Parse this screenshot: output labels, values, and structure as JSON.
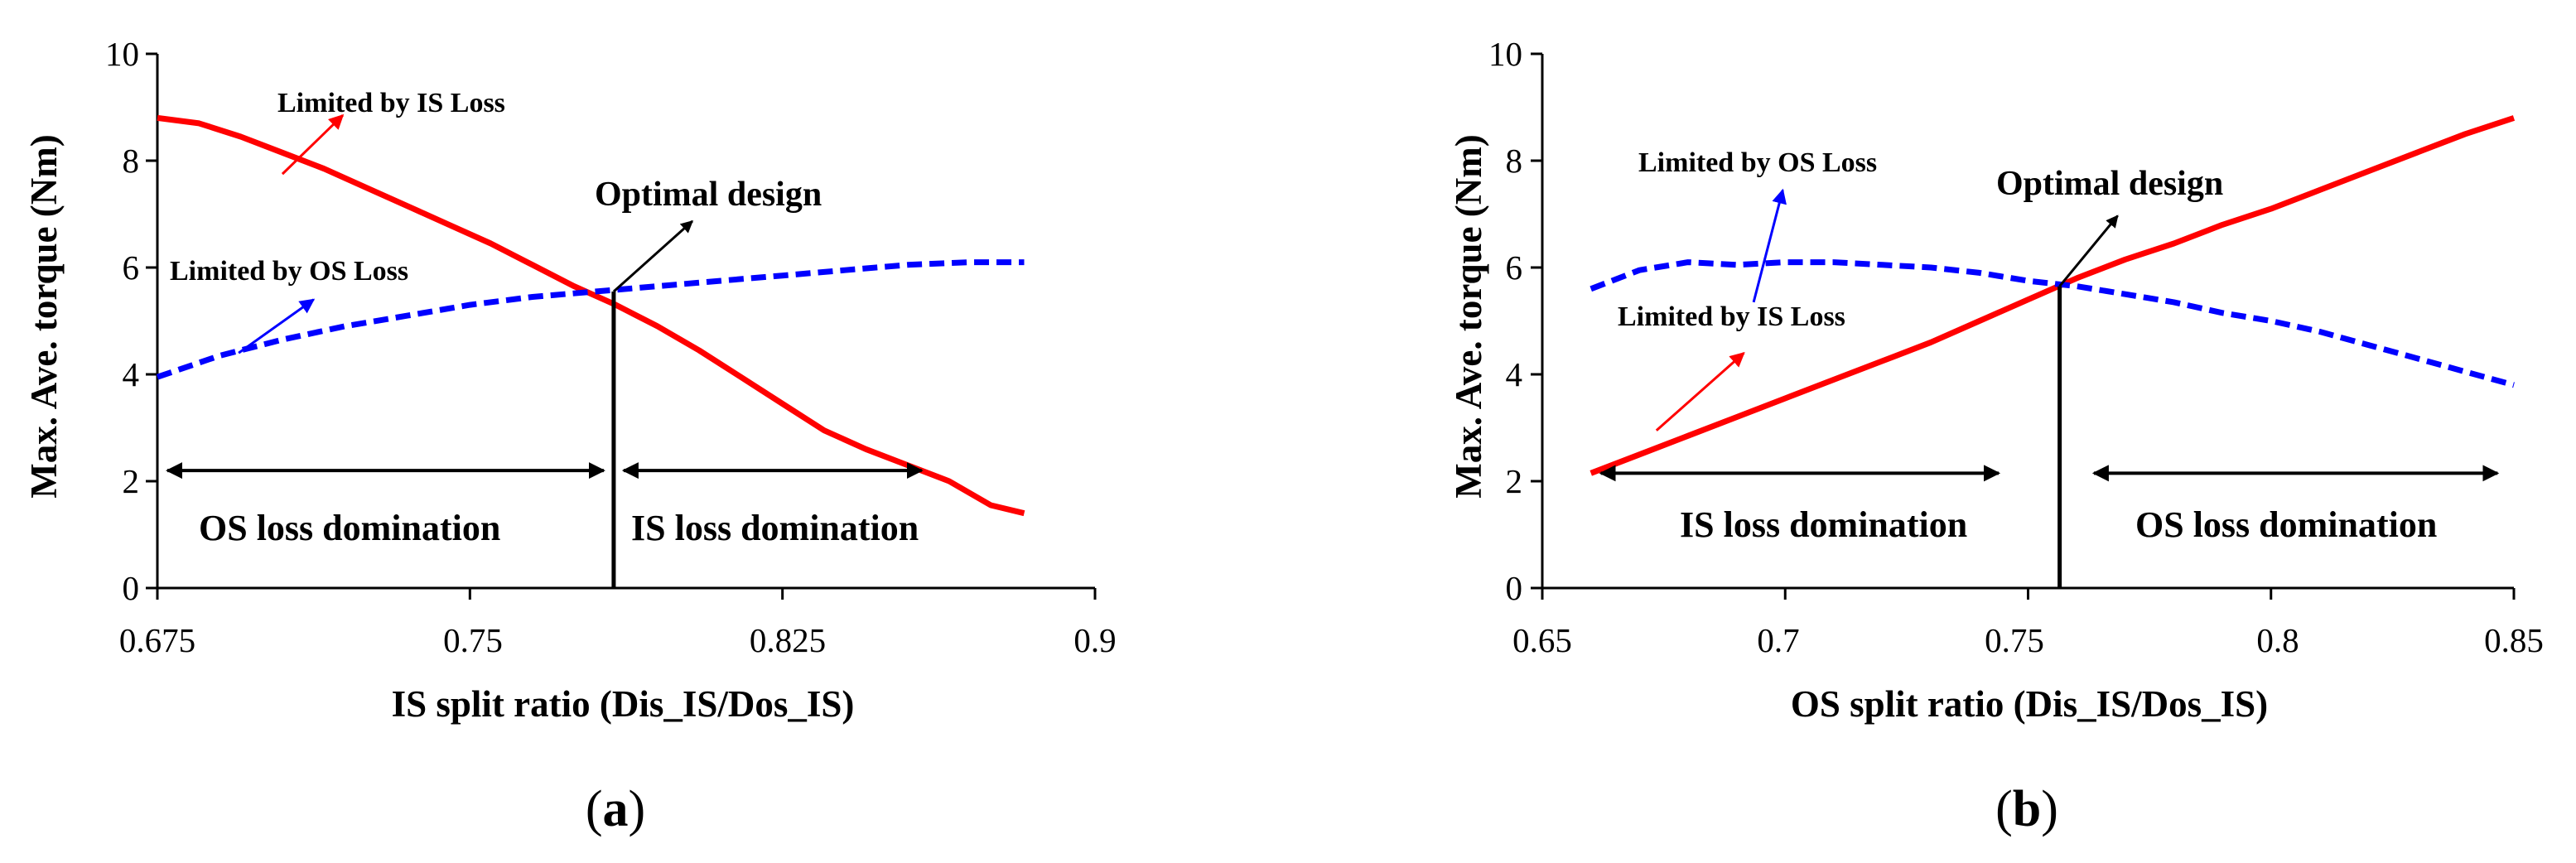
{
  "chart_data": [
    {
      "type": "line",
      "panel_label": "(a)",
      "panel_letter": "a",
      "xlabel": "IS split ratio (Dis_IS/Dos_IS)",
      "ylabel": "Max. Ave. torque (Nm)",
      "xlim": [
        0.675,
        0.9
      ],
      "ylim": [
        0,
        10
      ],
      "x_ticks": [
        0.675,
        0.75,
        0.825,
        0.9
      ],
      "x_tick_labels": [
        "0.675",
        "0.75",
        "0.825",
        "0.9"
      ],
      "y_ticks": [
        0,
        2,
        4,
        6,
        8,
        10
      ],
      "y_tick_labels": [
        "0",
        "2",
        "4",
        "6",
        "8",
        "10"
      ],
      "grid": false,
      "series": [
        {
          "name": "Limited by IS Loss",
          "color": "#ff0000",
          "style": "solid",
          "x": [
            0.675,
            0.685,
            0.695,
            0.705,
            0.715,
            0.725,
            0.735,
            0.745,
            0.755,
            0.765,
            0.775,
            0.785,
            0.795,
            0.805,
            0.815,
            0.825,
            0.835,
            0.845,
            0.855,
            0.865,
            0.875,
            0.883
          ],
          "y": [
            8.8,
            8.7,
            8.45,
            8.15,
            7.85,
            7.5,
            7.15,
            6.8,
            6.45,
            6.05,
            5.65,
            5.3,
            4.9,
            4.45,
            3.95,
            3.45,
            2.95,
            2.6,
            2.3,
            2.0,
            1.55,
            1.4
          ]
        },
        {
          "name": "Limited by OS Loss",
          "color": "#0000ff",
          "style": "dashed",
          "x": [
            0.675,
            0.69,
            0.705,
            0.72,
            0.735,
            0.75,
            0.765,
            0.78,
            0.795,
            0.81,
            0.825,
            0.84,
            0.855,
            0.87,
            0.883
          ],
          "y": [
            3.95,
            4.35,
            4.65,
            4.9,
            5.1,
            5.3,
            5.45,
            5.55,
            5.65,
            5.75,
            5.85,
            5.95,
            6.05,
            6.1,
            6.1
          ]
        }
      ],
      "optimal_x": 0.7845,
      "optimal_y": 5.55,
      "annotations": {
        "is_loss_label": "Limited by IS Loss",
        "os_loss_label": "Limited by OS Loss",
        "optimal_label": "Optimal design",
        "left_region": "OS loss domination",
        "right_region": "IS loss domination"
      },
      "region_arrow_y": 2.2,
      "region_left_range": [
        0.675,
        0.7845
      ],
      "region_right_range": [
        0.7845,
        0.86
      ]
    },
    {
      "type": "line",
      "panel_label": "(b)",
      "panel_letter": "b",
      "xlabel": "OS split ratio (Dis_IS/Dos_IS)",
      "ylabel": "Max. Ave. torque (Nm)",
      "xlim": [
        0.65,
        0.85
      ],
      "ylim": [
        0,
        10
      ],
      "x_ticks": [
        0.65,
        0.7,
        0.75,
        0.8,
        0.85
      ],
      "x_tick_labels": [
        "0.65",
        "0.7",
        "0.75",
        "0.8",
        "0.85"
      ],
      "y_ticks": [
        0,
        2,
        4,
        6,
        8,
        10
      ],
      "y_tick_labels": [
        "0",
        "2",
        "4",
        "6",
        "8",
        "10"
      ],
      "grid": false,
      "series": [
        {
          "name": "Limited by IS Loss",
          "color": "#ff0000",
          "style": "solid",
          "x": [
            0.66,
            0.67,
            0.68,
            0.69,
            0.7,
            0.71,
            0.72,
            0.73,
            0.74,
            0.75,
            0.76,
            0.77,
            0.78,
            0.79,
            0.8,
            0.81,
            0.82,
            0.83,
            0.84,
            0.85
          ],
          "y": [
            2.15,
            2.5,
            2.85,
            3.2,
            3.55,
            3.9,
            4.25,
            4.6,
            5.0,
            5.4,
            5.8,
            6.15,
            6.45,
            6.8,
            7.1,
            7.45,
            7.8,
            8.15,
            8.5,
            8.8
          ]
        },
        {
          "name": "Limited by OS Loss",
          "color": "#0000ff",
          "style": "dashed",
          "x": [
            0.66,
            0.67,
            0.68,
            0.69,
            0.7,
            0.71,
            0.72,
            0.73,
            0.74,
            0.75,
            0.76,
            0.77,
            0.78,
            0.79,
            0.8,
            0.81,
            0.82,
            0.83,
            0.84,
            0.85
          ],
          "y": [
            5.6,
            5.95,
            6.1,
            6.05,
            6.1,
            6.1,
            6.05,
            6.0,
            5.9,
            5.75,
            5.65,
            5.5,
            5.35,
            5.15,
            5.0,
            4.8,
            4.55,
            4.3,
            4.05,
            3.8
          ]
        }
      ],
      "optimal_x": 0.7565,
      "optimal_y": 5.65,
      "annotations": {
        "is_loss_label": "Limited by IS Loss",
        "os_loss_label": "Limited by OS Loss",
        "optimal_label": "Optimal design",
        "left_region": "IS loss domination",
        "right_region": "OS loss domination"
      },
      "region_arrow_y": 2.15,
      "region_left_range": [
        0.66,
        0.746
      ],
      "region_right_range": [
        0.7615,
        0.848
      ]
    }
  ]
}
